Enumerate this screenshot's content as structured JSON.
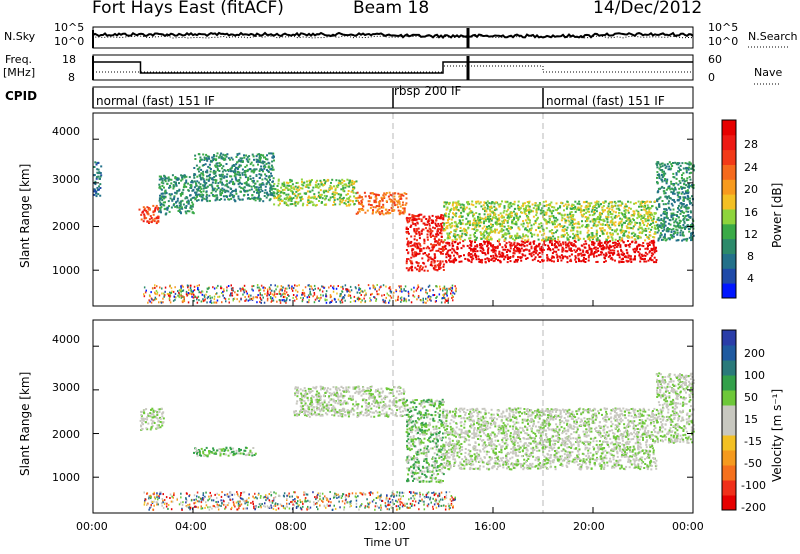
{
  "header": {
    "title": "Fort Hays East (fitACF)",
    "beam": "Beam 18",
    "date": "14/Dec/2012"
  },
  "panels": {
    "nsky_label": "N.Sky",
    "nsearch_label": "N.Search",
    "freq_label_1": "Freq.",
    "freq_label_2": "[MHz]",
    "nave_label": "Nave",
    "cpid_label": "CPID",
    "nsky_ticks": [
      "10^5",
      "10^0"
    ],
    "nsearch_ticks": [
      "10^5",
      "10^0"
    ],
    "freq_ticks": [
      "18",
      "8"
    ],
    "nave_ticks": [
      "60",
      "0"
    ]
  },
  "cpid_segments": [
    {
      "label": "normal (fast) 151 IF",
      "start_h": 0
    },
    {
      "label": "rbsp 200 IF",
      "start_h": 12
    },
    {
      "label": "normal (fast) 151 IF",
      "start_h": 18
    }
  ],
  "axes": {
    "ylabel": "Slant Range [km]",
    "xlabel": "Time UT",
    "x_ticks": [
      "00:00",
      "04:00",
      "08:00",
      "12:00",
      "16:00",
      "20:00",
      "00:00"
    ],
    "y_ticks": [
      "1000",
      "2000",
      "3000",
      "4000"
    ]
  },
  "colorbars": {
    "power": {
      "title": "Power [dB]",
      "ticks": [
        "4",
        "8",
        "12",
        "16",
        "20",
        "24",
        "28"
      ],
      "colors": [
        "#0016ff",
        "#1f4aa8",
        "#23718a",
        "#2c8a6a",
        "#3aaa47",
        "#8ed43c",
        "#f3c024",
        "#f79a1e",
        "#f56a1d",
        "#f23a18",
        "#ee1a14",
        "#e60000"
      ]
    },
    "velocity": {
      "title": "Velocity [m s⁻¹]",
      "ticks": [
        "200",
        "100",
        "50",
        "15",
        "-15",
        "-50",
        "-100",
        "-200"
      ],
      "colors": [
        "#2a3da8",
        "#1f5aa0",
        "#2a7a7a",
        "#33a04a",
        "#6ec83a",
        "#c8c8c0",
        "#c8c8c0",
        "#f3c024",
        "#f59a1e",
        "#f5701c",
        "#f0301a",
        "#e60000"
      ]
    }
  },
  "chart_data": {
    "type": "heatmap",
    "x_range_hours": [
      0,
      24
    ],
    "y_range_km": [
      180,
      4600
    ],
    "grid": false,
    "vertical_markers_hours": [
      12,
      18
    ],
    "power_panel_bands": [
      {
        "t0": 0,
        "t1": 0.3,
        "r0": 2700,
        "r1": 3500,
        "level": 2
      },
      {
        "t0": 1.8,
        "t1": 2.6,
        "r0": 2100,
        "r1": 2500,
        "level": 9
      },
      {
        "t0": 2.6,
        "t1": 4.0,
        "r0": 2300,
        "r1": 3200,
        "level": 3
      },
      {
        "t0": 4.0,
        "t1": 7.2,
        "r0": 2600,
        "r1": 3700,
        "level": 3
      },
      {
        "t0": 7.2,
        "t1": 10.5,
        "r0": 2500,
        "r1": 3100,
        "level": 5
      },
      {
        "t0": 10.5,
        "t1": 12.5,
        "r0": 2300,
        "r1": 2800,
        "level": 8
      },
      {
        "t0": 12.5,
        "t1": 14.0,
        "r0": 1000,
        "r1": 2300,
        "level": 10
      },
      {
        "t0": 14.0,
        "t1": 22.5,
        "r0": 1200,
        "r1": 1700,
        "level": 11
      },
      {
        "t0": 14.0,
        "t1": 22.5,
        "r0": 1700,
        "r1": 2600,
        "level": 5
      },
      {
        "t0": 22.5,
        "t1": 24.0,
        "r0": 1700,
        "r1": 3500,
        "level": 3
      }
    ],
    "velocity_panel_bands": [
      {
        "t0": 1.8,
        "t1": 2.8,
        "r0": 2100,
        "r1": 2600,
        "level": 5
      },
      {
        "t0": 8.0,
        "t1": 12.5,
        "r0": 2400,
        "r1": 3100,
        "level": 5
      },
      {
        "t0": 12.5,
        "t1": 14.0,
        "r0": 900,
        "r1": 2800,
        "level": 4
      },
      {
        "t0": 14.0,
        "t1": 22.5,
        "r0": 1200,
        "r1": 2600,
        "level": 5
      },
      {
        "t0": 22.5,
        "t1": 24.0,
        "r0": 1800,
        "r1": 3400,
        "level": 5
      },
      {
        "t0": 4.0,
        "t1": 6.5,
        "r0": 1500,
        "r1": 1700,
        "level": 4
      }
    ]
  }
}
